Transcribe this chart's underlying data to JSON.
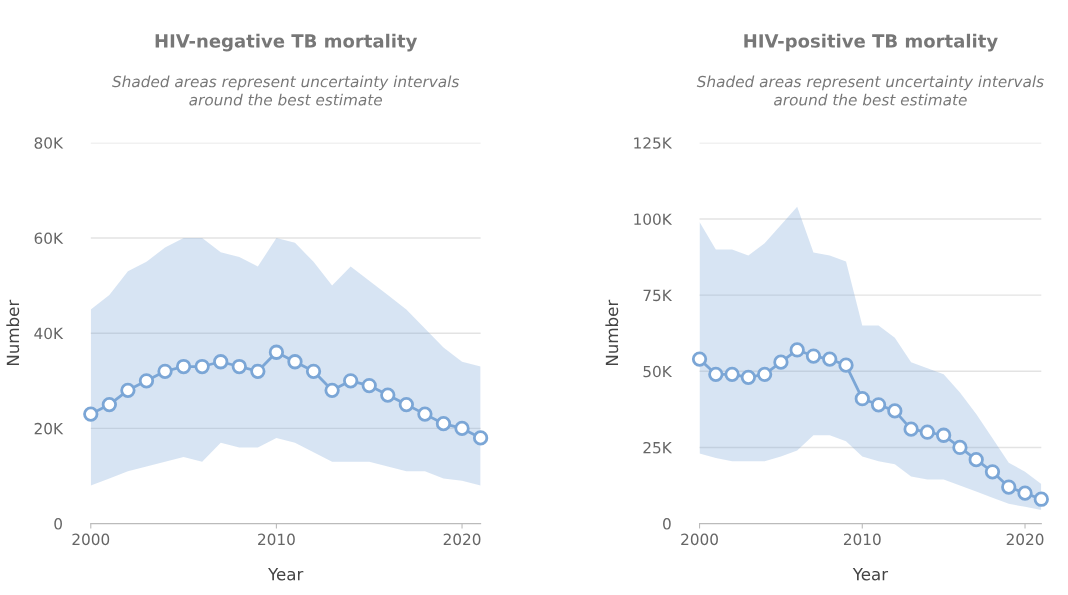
{
  "chart_data": [
    {
      "type": "line",
      "title": "HIV-negative TB mortality",
      "subtitle": "Shaded areas represent uncertainty intervals\naround the best estimate",
      "xlabel": "Year",
      "ylabel": "Number",
      "x": [
        2000,
        2001,
        2002,
        2003,
        2004,
        2005,
        2006,
        2007,
        2008,
        2009,
        2010,
        2011,
        2012,
        2013,
        2014,
        2015,
        2016,
        2017,
        2018,
        2019,
        2020,
        2021
      ],
      "series": [
        {
          "color": "#7ba6d6",
          "values": [
            23000,
            25000,
            28000,
            30000,
            32000,
            33000,
            33000,
            34000,
            33000,
            32000,
            36000,
            34000,
            32000,
            28000,
            30000,
            29000,
            27000,
            25000,
            23000,
            21000,
            20000,
            18000
          ],
          "lower": [
            8000,
            9500,
            11000,
            12000,
            13000,
            14000,
            13000,
            17000,
            16000,
            16000,
            18000,
            17000,
            15000,
            13000,
            13000,
            13000,
            12000,
            11000,
            11000,
            9500,
            9000,
            8000
          ],
          "upper": [
            45000,
            48000,
            53000,
            55000,
            58000,
            60000,
            60000,
            57000,
            56000,
            54000,
            60000,
            59000,
            55000,
            50000,
            54000,
            51000,
            48000,
            45000,
            41000,
            37000,
            34000,
            33000
          ]
        }
      ],
      "xlim": [
        2000,
        2021
      ],
      "xticks": [
        2000,
        2010,
        2020
      ],
      "ylim": [
        0,
        80000
      ],
      "yticks": [
        {
          "value": 0,
          "label": "0"
        },
        {
          "value": 20000,
          "label": "20K"
        },
        {
          "value": 40000,
          "label": "40K"
        },
        {
          "value": 60000,
          "label": "60K"
        },
        {
          "value": 80000,
          "label": "80K"
        }
      ],
      "grid": "y",
      "legend": false,
      "marker": "circle",
      "line_style": "solid"
    },
    {
      "type": "line",
      "title": "HIV-positive TB mortality",
      "subtitle": "Shaded areas represent uncertainty intervals\naround the best estimate",
      "xlabel": "Year",
      "ylabel": "Number",
      "x": [
        2000,
        2001,
        2002,
        2003,
        2004,
        2005,
        2006,
        2007,
        2008,
        2009,
        2010,
        2011,
        2012,
        2013,
        2014,
        2015,
        2016,
        2017,
        2018,
        2019,
        2020,
        2021
      ],
      "series": [
        {
          "color": "#7ba6d6",
          "values": [
            54000,
            49000,
            49000,
            48000,
            49000,
            53000,
            57000,
            55000,
            54000,
            52000,
            41000,
            39000,
            37000,
            31000,
            30000,
            29000,
            25000,
            21000,
            17000,
            12000,
            10000,
            8000
          ],
          "lower": [
            23000,
            21500,
            20500,
            20500,
            20500,
            22000,
            24000,
            29000,
            29000,
            27000,
            22000,
            20500,
            19500,
            15500,
            14500,
            14500,
            12500,
            10500,
            8500,
            6500,
            5500,
            4500
          ],
          "upper": [
            99000,
            90000,
            90000,
            88000,
            92000,
            98000,
            104000,
            89000,
            88000,
            86000,
            65000,
            65000,
            61000,
            53000,
            51000,
            49000,
            43000,
            36000,
            28000,
            20000,
            17000,
            13000
          ]
        }
      ],
      "xlim": [
        2000,
        2021
      ],
      "xticks": [
        2000,
        2010,
        2020
      ],
      "ylim": [
        0,
        125000
      ],
      "yticks": [
        {
          "value": 0,
          "label": "0"
        },
        {
          "value": 25000,
          "label": "25K"
        },
        {
          "value": 50000,
          "label": "50K"
        },
        {
          "value": 75000,
          "label": "75K"
        },
        {
          "value": 100000,
          "label": "100K"
        },
        {
          "value": 125000,
          "label": "125K"
        }
      ],
      "grid": "y",
      "legend": false,
      "marker": "circle",
      "line_style": "solid"
    }
  ]
}
